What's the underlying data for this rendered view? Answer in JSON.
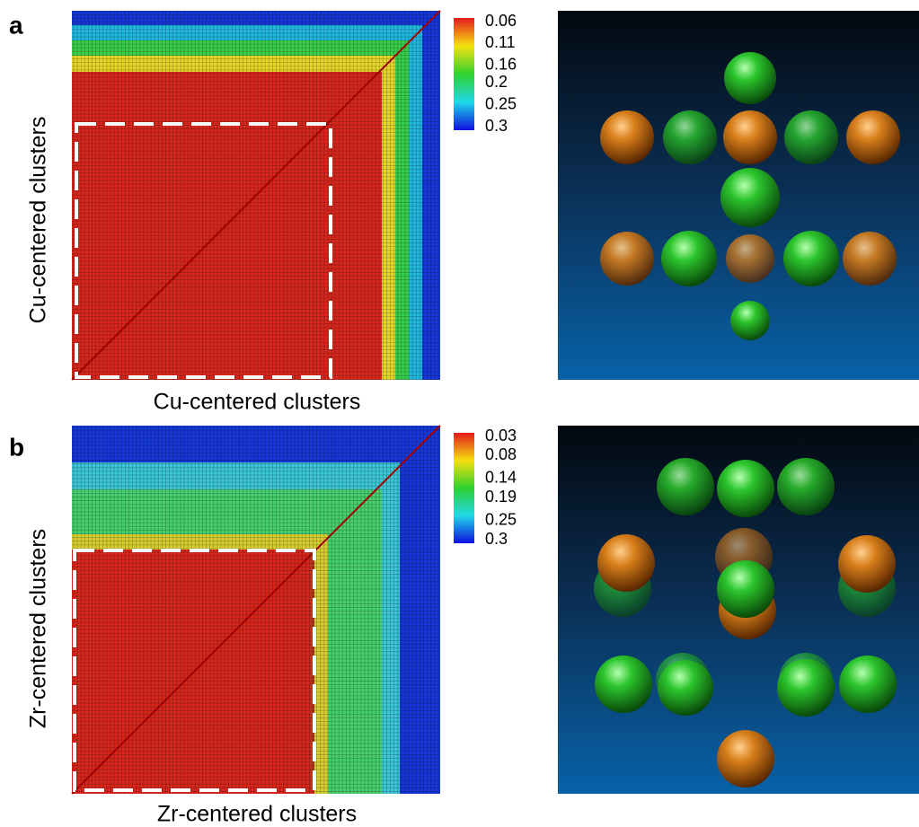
{
  "panels": [
    {
      "label": "a",
      "x_label": "Cu-centered clusters",
      "y_label": "Cu-centered clusters",
      "colorbar_ticks": [
        0.06,
        0.11,
        0.16,
        0.2,
        0.25,
        0.3
      ]
    },
    {
      "label": "b",
      "x_label": "Zr-centered clusters",
      "y_label": "Zr-centered clusters",
      "colorbar_ticks": [
        0.03,
        0.08,
        0.14,
        0.19,
        0.25,
        0.3
      ]
    }
  ]
}
